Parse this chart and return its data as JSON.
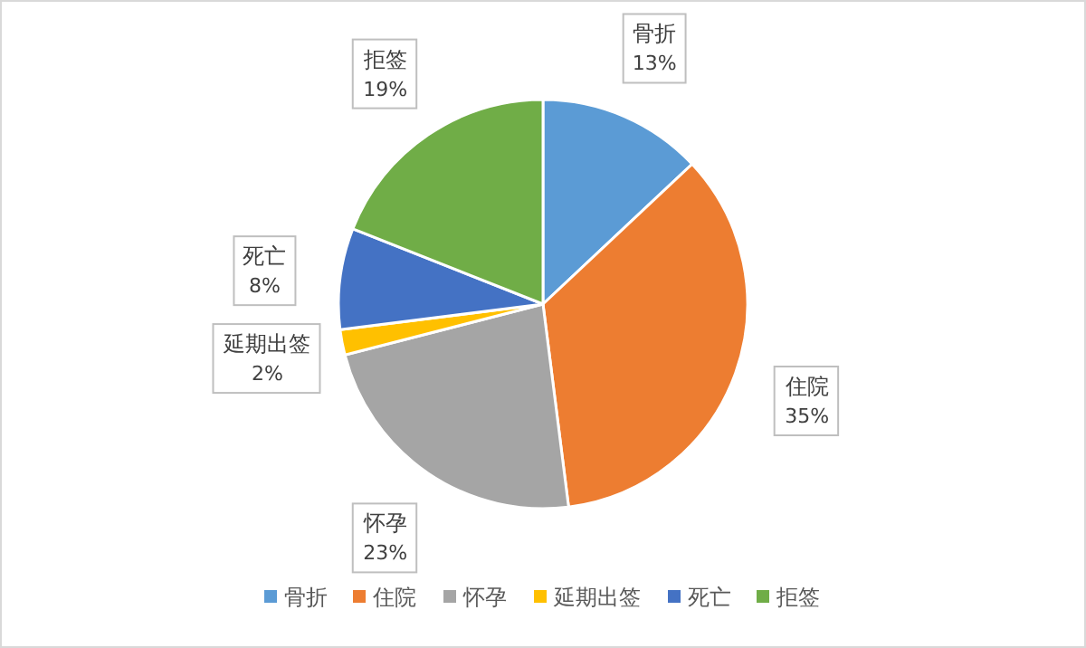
{
  "chart_data": {
    "type": "pie",
    "categories": [
      "骨折",
      "住院",
      "怀孕",
      "延期出签",
      "死亡",
      "拒签"
    ],
    "values": [
      13,
      35,
      23,
      2,
      8,
      19
    ],
    "colors": [
      "#5b9bd5",
      "#ed7d31",
      "#a5a5a5",
      "#ffc000",
      "#4472c4",
      "#70ad47"
    ],
    "value_labels": [
      "13%",
      "35%",
      "23%",
      "2%",
      "8%",
      "19%"
    ],
    "legend": "bottom"
  }
}
